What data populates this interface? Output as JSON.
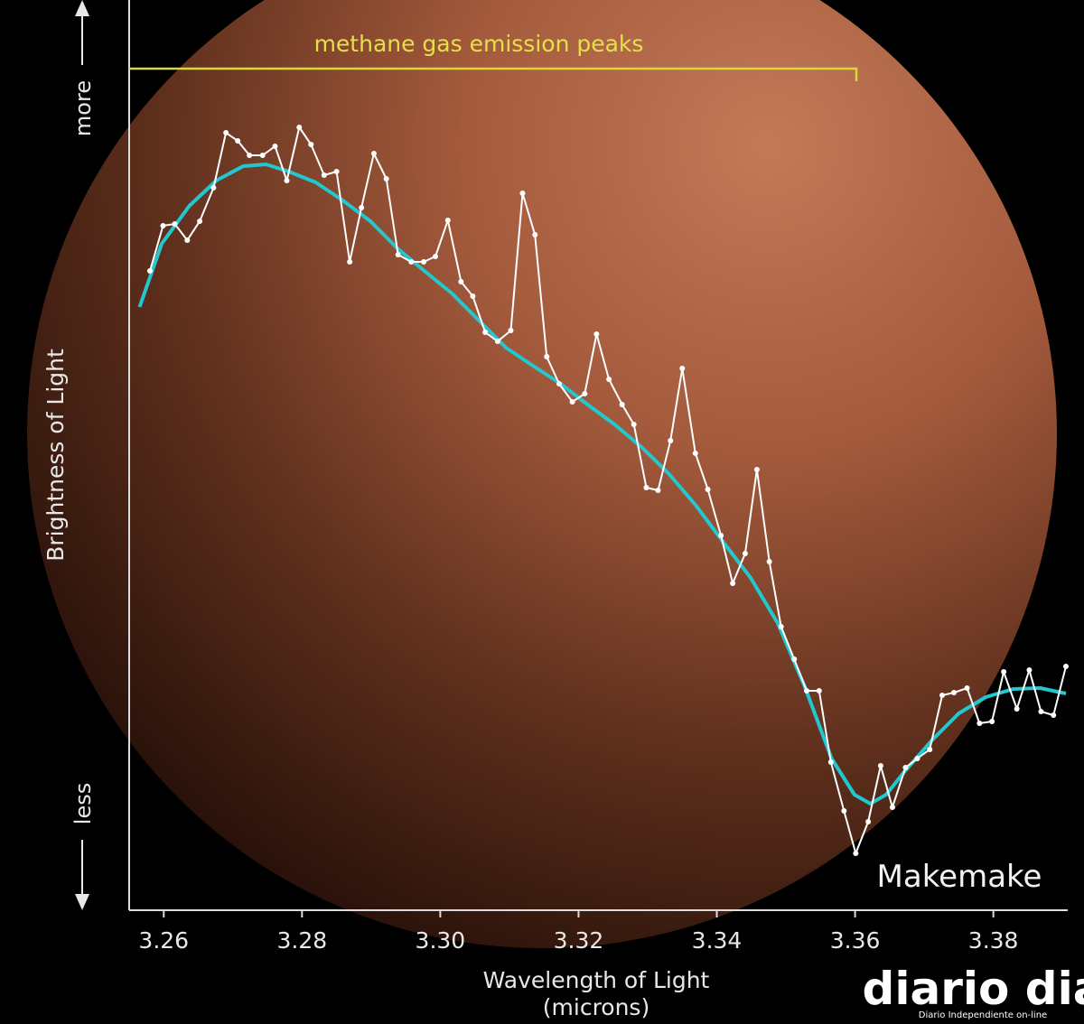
{
  "chart_data": {
    "type": "line",
    "annotation": "methane gas emission peaks",
    "label": "Makemake",
    "y_label": "Brightness of Light",
    "y_more": "more",
    "y_less": "less",
    "x_label": [
      "Wavelength of Light",
      "(microns)"
    ],
    "xlim": [
      3.255,
      3.3905
    ],
    "ylim": [
      0,
      100
    ],
    "xticks": [
      3.26,
      3.28,
      {
        "value": 3.3,
        "label": "3.30"
      },
      3.32,
      3.34,
      3.36,
      3.38
    ],
    "series": [
      {
        "color": "#ffffff",
        "markers": true,
        "x": [
          3.258,
          3.2599,
          3.2616,
          3.2634,
          3.2652,
          3.2672,
          3.269,
          3.2707,
          3.2724,
          3.2743,
          3.2761,
          3.2778,
          3.2796,
          3.2813,
          3.2832,
          3.285,
          3.2869,
          3.2886,
          3.2904,
          3.2922,
          3.2939,
          3.2958,
          3.2976,
          3.2993,
          3.3011,
          3.303,
          3.3047,
          3.3065,
          3.3083,
          3.3102,
          3.3119,
          3.3137,
          3.3154,
          3.3172,
          3.3191,
          3.3209,
          3.3226,
          3.3244,
          3.3263,
          3.328,
          3.3298,
          3.3315,
          3.3333,
          3.335,
          3.3369,
          3.3387,
          3.3406,
          3.3423,
          3.3441,
          3.3458,
          3.3476,
          3.3493,
          3.3512,
          3.353,
          3.3548,
          3.3565,
          3.3584,
          3.3601,
          3.3619,
          3.3637,
          3.3654,
          3.3673,
          3.369,
          3.3708,
          3.3726,
          3.3743,
          3.3762,
          3.378,
          3.3798,
          3.3815,
          3.3834,
          3.3852,
          3.3869,
          3.3887,
          3.3905
        ],
        "values": [
          70.8,
          75.8,
          76.0,
          74.2,
          76.3,
          80.0,
          86.1,
          85.2,
          83.6,
          83.6,
          84.6,
          80.8,
          86.7,
          84.8,
          81.4,
          81.8,
          71.8,
          77.8,
          83.8,
          81.0,
          72.6,
          71.8,
          71.8,
          72.4,
          76.4,
          69.6,
          68.0,
          64.0,
          63.0,
          64.2,
          79.4,
          74.8,
          61.3,
          58.3,
          56.3,
          57.2,
          63.8,
          58.8,
          56.0,
          53.8,
          46.8,
          46.5,
          52.0,
          60.0,
          50.6,
          46.6,
          41.5,
          36.2,
          39.5,
          48.8,
          38.6,
          31.4,
          27.8,
          24.3,
          24.3,
          16.4,
          11.0,
          6.3,
          9.8,
          16.0,
          11.4,
          15.8,
          16.8,
          17.8,
          23.8,
          24.1,
          24.6,
          20.7,
          20.9,
          26.4,
          22.3,
          26.6,
          22.0,
          21.6,
          27.0
        ]
      },
      {
        "color": "#22c8d0",
        "markers": false,
        "x": [
          3.2565,
          3.2597,
          3.2637,
          3.2676,
          3.2715,
          3.2748,
          3.2781,
          3.282,
          3.2859,
          3.2899,
          3.2938,
          3.2977,
          3.3017,
          3.3056,
          3.3095,
          3.3134,
          3.3174,
          3.3213,
          3.3252,
          3.3291,
          3.3331,
          3.337,
          3.3409,
          3.3449,
          3.3488,
          3.3527,
          3.3566,
          3.3599,
          3.3622,
          3.3645,
          3.3671,
          3.3711,
          3.375,
          3.3789,
          3.3829,
          3.3868,
          3.3905
        ],
        "values": [
          66.8,
          73.8,
          78.0,
          80.8,
          82.4,
          82.6,
          81.8,
          80.6,
          78.6,
          76.3,
          73.3,
          70.8,
          68.3,
          65.3,
          62.3,
          60.3,
          58.3,
          56.0,
          53.8,
          51.3,
          48.3,
          44.8,
          40.8,
          36.8,
          31.8,
          24.8,
          16.8,
          12.8,
          11.8,
          12.8,
          15.3,
          18.8,
          21.8,
          23.6,
          24.5,
          24.6,
          24.0
        ]
      }
    ]
  },
  "watermark": {
    "title": "diario dia",
    "subtitle": "Diario Independiente on-line"
  }
}
